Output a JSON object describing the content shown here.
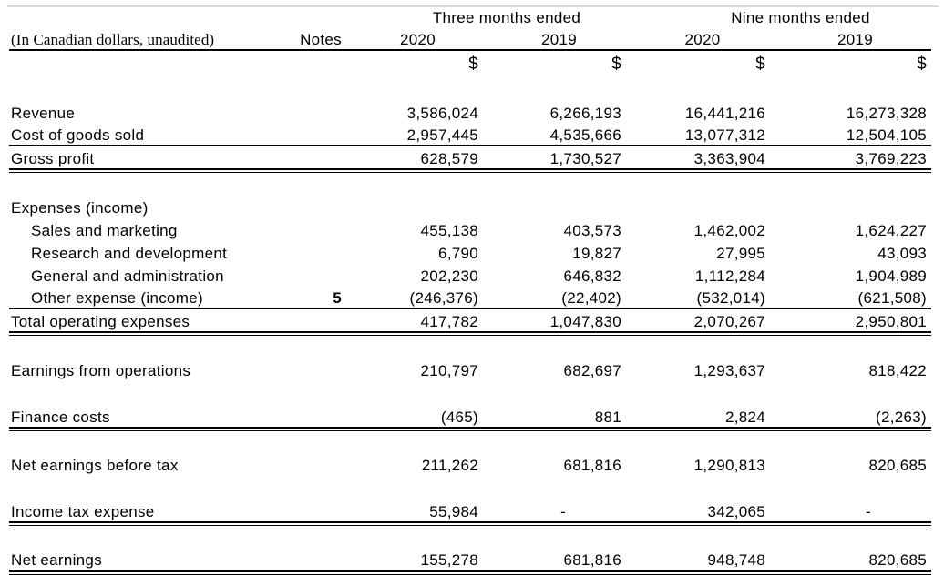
{
  "header": {
    "unit_note": "(In Canadian dollars, unaudited)",
    "notes_col": "Notes",
    "group_three_months": "Three months ended",
    "group_nine_months": "Nine months ended",
    "years": [
      "2020",
      "2019",
      "2020",
      "2019"
    ],
    "currency_symbols": [
      "$",
      "$",
      "$",
      "$"
    ]
  },
  "rows": [
    {
      "label": "Revenue",
      "note": "",
      "values": [
        "3,586,024",
        "6,266,193",
        "16,441,216",
        "16,273,328"
      ]
    },
    {
      "label": "Cost of goods sold",
      "note": "",
      "values": [
        "2,957,445",
        "4,535,666",
        "13,077,312",
        "12,504,105"
      ]
    },
    {
      "label": "Gross profit",
      "note": "",
      "values": [
        "628,579",
        "1,730,527",
        "3,363,904",
        "3,769,223"
      ]
    },
    {
      "label": "Expenses (income)",
      "note": "",
      "values": [
        "",
        "",
        "",
        ""
      ]
    },
    {
      "label": "Sales and marketing",
      "note": "",
      "values": [
        "455,138",
        "403,573",
        "1,462,002",
        "1,624,227"
      ]
    },
    {
      "label": "Research and development",
      "note": "",
      "values": [
        "6,790",
        "19,827",
        "27,995",
        "43,093"
      ]
    },
    {
      "label": "General and administration",
      "note": "",
      "values": [
        "202,230",
        "646,832",
        "1,112,284",
        "1,904,989"
      ]
    },
    {
      "label": "Other expense (income)",
      "note": "5",
      "values": [
        "(246,376)",
        "(22,402)",
        "(532,014)",
        "(621,508)"
      ]
    },
    {
      "label": "Total operating expenses",
      "note": "",
      "values": [
        "417,782",
        "1,047,830",
        "2,070,267",
        "2,950,801"
      ]
    },
    {
      "label": "Earnings from operations",
      "note": "",
      "values": [
        "210,797",
        "682,697",
        "1,293,637",
        "818,422"
      ]
    },
    {
      "label": "Finance costs",
      "note": "",
      "values": [
        "(465)",
        "881",
        "2,824",
        "(2,263)"
      ]
    },
    {
      "label": "Net earnings before tax",
      "note": "",
      "values": [
        "211,262",
        "681,816",
        "1,290,813",
        "820,685"
      ]
    },
    {
      "label": "Income tax expense",
      "note": "",
      "values": [
        "55,984",
        "-",
        "342,065",
        "-"
      ]
    },
    {
      "label": "Net earnings",
      "note": "",
      "values": [
        "155,278",
        "681,816",
        "948,748",
        "820,685"
      ]
    }
  ]
}
